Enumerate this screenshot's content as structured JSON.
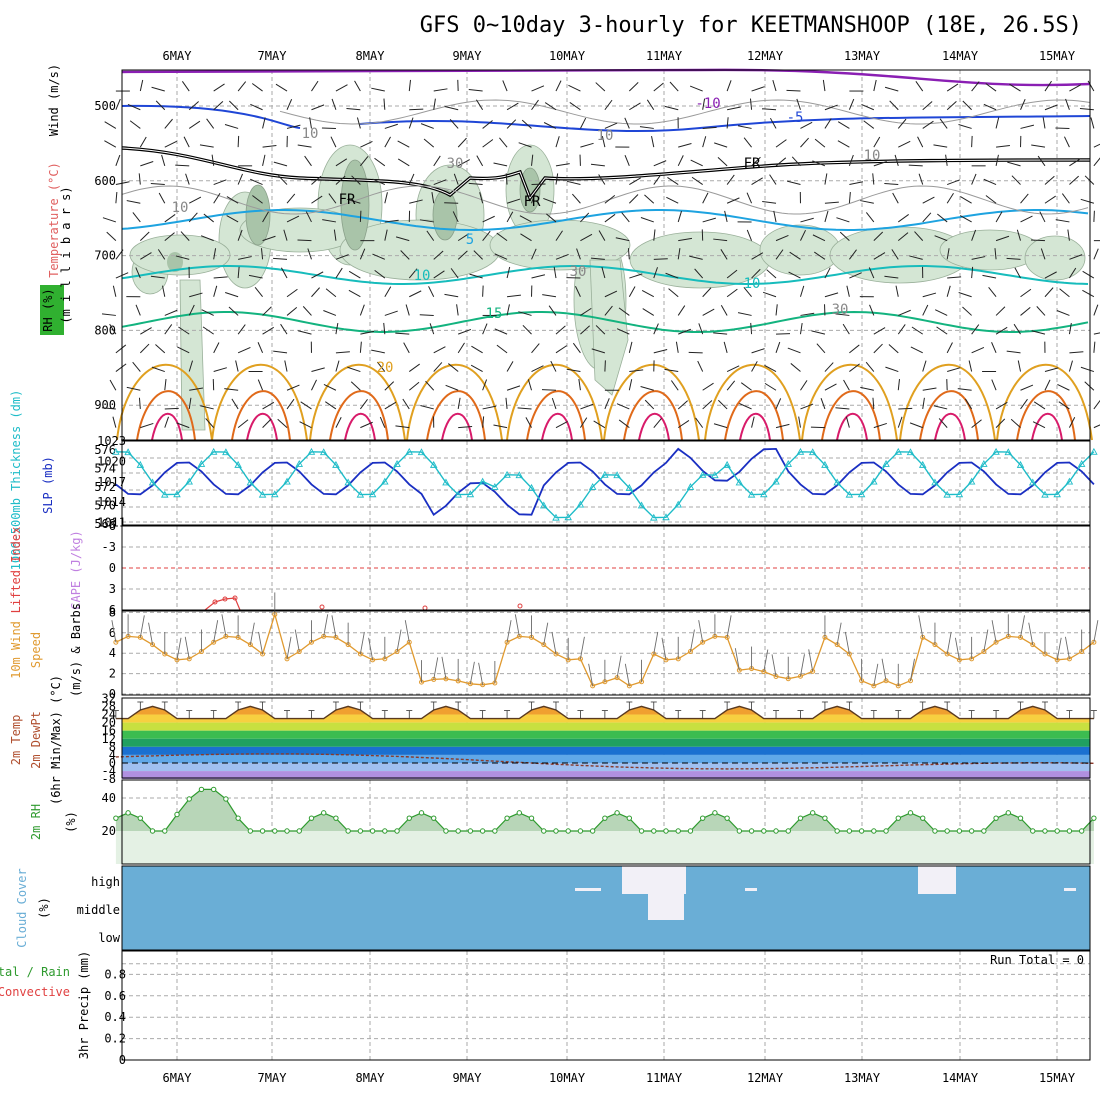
{
  "title": "GFS 0~10day 3-hourly for KEETMANSHOOP (18E, 26.5S)",
  "dates": [
    "6MAY",
    "7MAY",
    "8MAY",
    "9MAY",
    "10MAY",
    "11MAY",
    "12MAY",
    "13MAY",
    "14MAY",
    "15MAY"
  ],
  "colors": {
    "rh_fill": "#d4e6d4",
    "rh_fill_dark": "#a9c4a9",
    "temp_m10": "#8a1fb3",
    "temp_m5": "#1f46d6",
    "temp_0": "#000000",
    "temp_5": "#1ea3e0",
    "temp_10": "#17bcbc",
    "temp_15": "#13b37f",
    "temp_20": "#e0a020",
    "temp_25": "#e06a1a",
    "temp_30": "#d81b6a",
    "thickness": "#1ebcc8",
    "slp": "#1a2fc2",
    "lifted_index": "#e04040",
    "wind10m": "#e09a30",
    "dewpoint": "#8a3a2a",
    "rh2m": "#2e9a2e",
    "cloud": "#6aaed6",
    "cloud_gap": "#f2f0f7"
  },
  "panels": {
    "upper": {
      "label_wind": "Wind (m/s)",
      "label_temp": "Temperature (°C)",
      "label_rh": "RH (%)",
      "label_mb": "(m i l l i b a r s)",
      "pressure_ticks": [
        "500",
        "600",
        "700",
        "800",
        "900"
      ],
      "contour_labels": [
        "-10",
        "-5",
        "FR",
        "5",
        "10",
        "15",
        "20",
        "FR",
        "FR",
        "10",
        "30",
        "30",
        "10",
        "10",
        "10",
        "10",
        "30"
      ]
    },
    "thickness": {
      "label_thick": "1000-500mb Thickness (dm)",
      "label_slp": "SLP (mb)",
      "left_ticks": [
        "576",
        "574",
        "572",
        "570",
        "568"
      ],
      "right_ticks": [
        "1023",
        "1020",
        "1017",
        "1014",
        "1011"
      ]
    },
    "lifted": {
      "label_li": "Lifted Index",
      "label_cape": "CAPE (J/kg)",
      "ticks": [
        "-6",
        "-3",
        "0",
        "3",
        "6"
      ]
    },
    "wind10m": {
      "label_a": "10m Wind",
      "label_b": "Speed",
      "label_c": "(m/s) & Barbs",
      "ticks": [
        "8",
        "6",
        "4",
        "2",
        "0"
      ]
    },
    "temp2m": {
      "label_a": "2m Temp",
      "label_b": "2m DewPt",
      "label_c": "(6hr Min/Max) (°C)",
      "ticks": [
        "32",
        "24",
        "16",
        "8",
        "0",
        "-8",
        "28",
        "20",
        "12",
        "4",
        "-4"
      ]
    },
    "rh2m": {
      "label_a": "2m RH",
      "label_b": "(%)",
      "ticks": [
        "40",
        "20"
      ]
    },
    "cloud": {
      "label_a": "Cloud Cover",
      "label_b": "(%)",
      "levels": [
        "high",
        "middle",
        "low"
      ]
    },
    "precip": {
      "label_a": "3hr Precip (mm)",
      "label_b": "Total / Rain",
      "label_c": "Convective",
      "run_total": "Run Total = 0",
      "ticks": [
        "0.8",
        "0.6",
        "0.4",
        "0.2",
        "0"
      ]
    }
  },
  "chart_data": {
    "type": "line",
    "x": [
      "6MAY",
      "7MAY",
      "8MAY",
      "9MAY",
      "10MAY",
      "11MAY",
      "12MAY",
      "13MAY",
      "14MAY",
      "15MAY"
    ],
    "series": [
      {
        "name": "SLP",
        "values": [
          1017,
          1020,
          1018,
          1016,
          1012,
          1017,
          1019,
          1018,
          1019,
          1018
        ]
      },
      {
        "name": "1000-500mb Thickness",
        "values": [
          575.5,
          574,
          572,
          574.5,
          572,
          569,
          573,
          574.5,
          574,
          573.5
        ]
      },
      {
        "name": "10m Wind Speed",
        "values": [
          4.5,
          6,
          4.5,
          4.5,
          1,
          3,
          2,
          4,
          5,
          4
        ]
      },
      {
        "name": "2m Temp",
        "values": [
          21,
          24,
          24,
          28,
          23,
          23,
          28,
          28,
          28,
          21
        ]
      },
      {
        "name": "2m DewPt",
        "values": [
          3,
          5,
          2,
          2,
          0,
          -1,
          -2,
          -1,
          -2,
          -3
        ]
      },
      {
        "name": "2m RH",
        "values": [
          20,
          33,
          32,
          24,
          32,
          30,
          30,
          25,
          20,
          21
        ]
      }
    ],
    "precip_run_total": 0,
    "lifted_index_range": [
      -6,
      6
    ],
    "wind_ylim": [
      0,
      8
    ],
    "rh_ylim": [
      0,
      50
    ],
    "precip_ylim": [
      0,
      0.9
    ]
  }
}
